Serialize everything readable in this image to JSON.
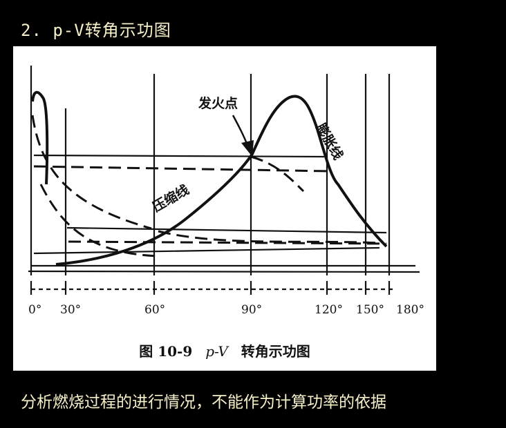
{
  "slide": {
    "title": "2. p-V转角示功图",
    "footer": "分析燃烧过程的进行情况，不能作为计算功率的依据"
  },
  "figure": {
    "caption_number": "图 10-9",
    "caption_var": "p-V",
    "caption_text": "转角示功图",
    "labels": {
      "ignition": "发火点",
      "compression": "压缩线",
      "expansion": "膨胀线"
    },
    "ticks": [
      "0°",
      "30°",
      "60°",
      "90°",
      "120°",
      "150°",
      "180°"
    ]
  }
}
